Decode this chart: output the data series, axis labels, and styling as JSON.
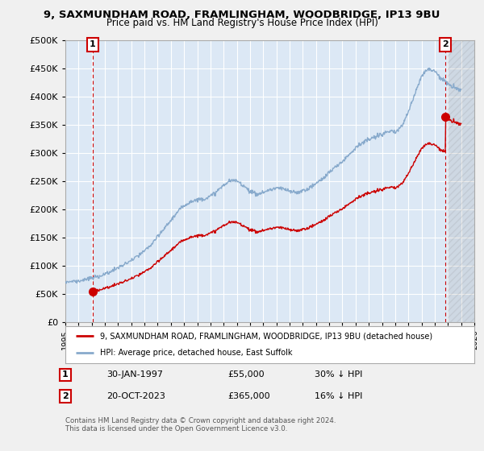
{
  "title_line1": "9, SAXMUNDHAM ROAD, FRAMLINGHAM, WOODBRIDGE, IP13 9BU",
  "title_line2": "Price paid vs. HM Land Registry's House Price Index (HPI)",
  "background_color": "#f0f0f0",
  "plot_bg_color": "#dce8f5",
  "legend_bg_color": "#ffffff",
  "legend_label_red": "9, SAXMUNDHAM ROAD, FRAMLINGHAM, WOODBRIDGE, IP13 9BU (detached house)",
  "legend_label_blue": "HPI: Average price, detached house, East Suffolk",
  "footnote": "Contains HM Land Registry data © Crown copyright and database right 2024.\nThis data is licensed under the Open Government Licence v3.0.",
  "annotation1_label": "1",
  "annotation1_date": "30-JAN-1997",
  "annotation1_price": "£55,000",
  "annotation1_hpi": "30% ↓ HPI",
  "annotation2_label": "2",
  "annotation2_date": "20-OCT-2023",
  "annotation2_price": "£365,000",
  "annotation2_hpi": "16% ↓ HPI",
  "marker1_x": 1997.08,
  "marker1_y": 55000,
  "marker2_x": 2023.8,
  "marker2_y": 365000,
  "ylim": [
    0,
    500000
  ],
  "xlim": [
    1995,
    2026
  ],
  "yticks": [
    0,
    50000,
    100000,
    150000,
    200000,
    250000,
    300000,
    350000,
    400000,
    450000,
    500000
  ],
  "xticks": [
    1995,
    1996,
    1997,
    1998,
    1999,
    2000,
    2001,
    2002,
    2003,
    2004,
    2005,
    2006,
    2007,
    2008,
    2009,
    2010,
    2011,
    2012,
    2013,
    2014,
    2015,
    2016,
    2017,
    2018,
    2019,
    2020,
    2021,
    2022,
    2023,
    2024,
    2025,
    2026
  ],
  "red_line_color": "#cc0000",
  "blue_line_color": "#88aacc",
  "dashed_line_color": "#cc0000",
  "marker_color": "#cc0000",
  "grid_color": "#ffffff",
  "hatch_color": "#cccccc",
  "hpi_years": [
    1995.0,
    1995.5,
    1996.0,
    1996.5,
    1997.0,
    1997.5,
    1998.0,
    1998.5,
    1999.0,
    1999.5,
    2000.0,
    2000.5,
    2001.0,
    2001.5,
    2002.0,
    2002.5,
    2003.0,
    2003.5,
    2004.0,
    2004.5,
    2005.0,
    2005.5,
    2006.0,
    2006.5,
    2007.0,
    2007.5,
    2008.0,
    2008.5,
    2009.0,
    2009.5,
    2010.0,
    2010.5,
    2011.0,
    2011.5,
    2012.0,
    2012.5,
    2013.0,
    2013.5,
    2014.0,
    2014.5,
    2015.0,
    2015.5,
    2016.0,
    2016.5,
    2017.0,
    2017.5,
    2018.0,
    2018.5,
    2019.0,
    2019.5,
    2020.0,
    2020.5,
    2021.0,
    2021.5,
    2022.0,
    2022.5,
    2023.0,
    2023.5,
    2024.0,
    2024.5,
    2025.0
  ],
  "hpi_vals": [
    72000,
    73000,
    74000,
    76000,
    79000,
    82000,
    86000,
    91000,
    97000,
    103000,
    110000,
    118000,
    127000,
    138000,
    152000,
    167000,
    182000,
    196000,
    208000,
    215000,
    218000,
    220000,
    224000,
    233000,
    244000,
    252000,
    252000,
    244000,
    234000,
    228000,
    232000,
    236000,
    240000,
    238000,
    234000,
    232000,
    235000,
    240000,
    248000,
    257000,
    268000,
    278000,
    288000,
    300000,
    312000,
    320000,
    326000,
    330000,
    336000,
    340000,
    338000,
    350000,
    375000,
    408000,
    440000,
    452000,
    448000,
    435000,
    425000,
    418000,
    415000
  ]
}
